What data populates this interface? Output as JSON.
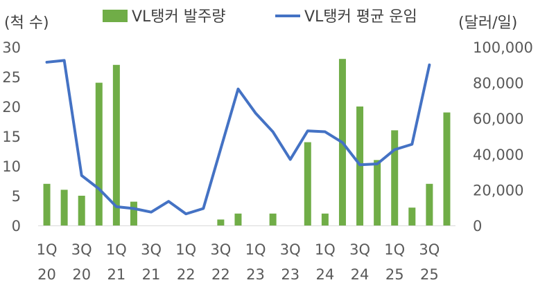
{
  "chart_data": {
    "type": "bar+line",
    "left_axis_label": "(척 수)",
    "right_axis_label": "(달러/일)",
    "left_ylim": [
      0,
      30
    ],
    "left_ticks": [
      "0",
      "5",
      "10",
      "15",
      "20",
      "25",
      "30"
    ],
    "right_ylim": [
      0,
      100000
    ],
    "right_ticks": [
      "0",
      "20,000",
      "40,000",
      "60,000",
      "80,000",
      "100,000"
    ],
    "x_tick_labels": [
      {
        "quarter": "1Q",
        "year": "20"
      },
      {
        "quarter": "3Q",
        "year": "20"
      },
      {
        "quarter": "1Q",
        "year": "21"
      },
      {
        "quarter": "3Q",
        "year": "21"
      },
      {
        "quarter": "1Q",
        "year": "22"
      },
      {
        "quarter": "3Q",
        "year": "22"
      },
      {
        "quarter": "1Q",
        "year": "23"
      },
      {
        "quarter": "3Q",
        "year": "23"
      },
      {
        "quarter": "1Q",
        "year": "24"
      },
      {
        "quarter": "3Q",
        "year": "24"
      },
      {
        "quarter": "1Q",
        "year": "25"
      },
      {
        "quarter": "3Q",
        "year": "25"
      }
    ],
    "legend_position": "top",
    "series": [
      {
        "name": "VL탱커 발주량",
        "kind": "bar",
        "axis": "left",
        "color": "#70AD47",
        "values": [
          7,
          6,
          5,
          24,
          27,
          4,
          0,
          0,
          0,
          0,
          1,
          2,
          0,
          2,
          0,
          14,
          2,
          28,
          20,
          11,
          16,
          3,
          7,
          19
        ]
      },
      {
        "name": "VL탱커 평균 운임",
        "kind": "line",
        "axis": "right",
        "color": "#4472C4",
        "values": [
          91500,
          92500,
          28000,
          20500,
          10500,
          9500,
          7500,
          13500,
          6500,
          9500,
          43000,
          76500,
          63000,
          52500,
          37000,
          53000,
          52500,
          46500,
          34000,
          34500,
          42500,
          45500,
          90000
        ]
      }
    ]
  }
}
